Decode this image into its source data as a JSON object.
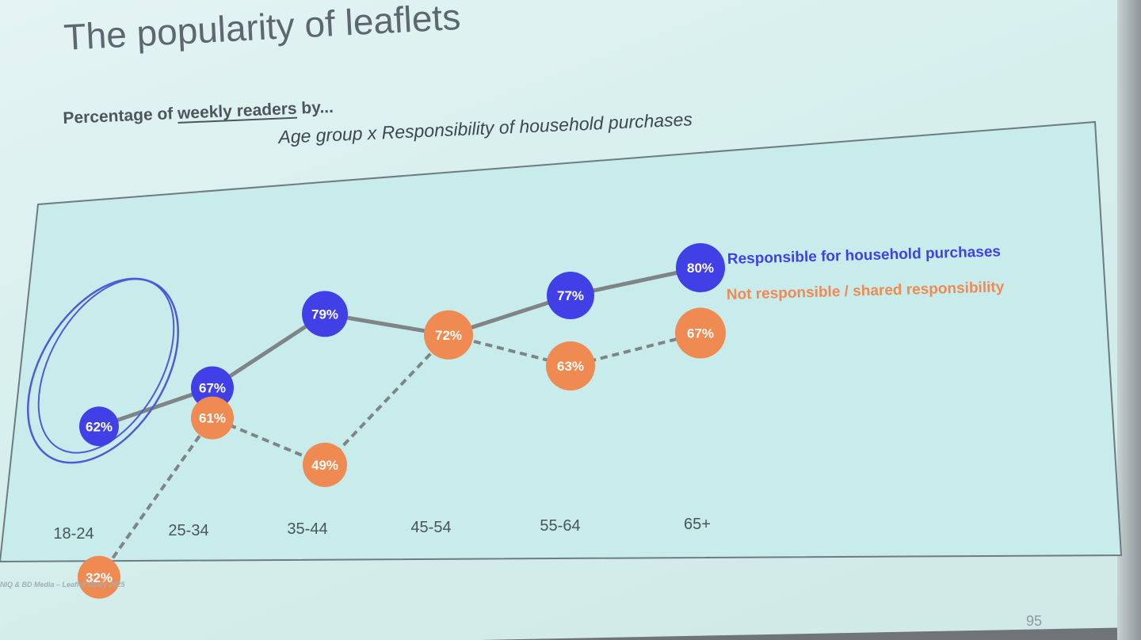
{
  "slide": {
    "title": "The popularity of leaflets",
    "subtitle_prefix": "Percentage of ",
    "subtitle_underlined": "weekly readers",
    "subtitle_suffix": " by...",
    "source": "NIQ & BD Media – Leaflet Study 2025",
    "page_number": "95"
  },
  "colors": {
    "responsible": "#4040e6",
    "not_responsible": "#ee8a52",
    "line": "#7f8486",
    "annotation": "#4f5bd5"
  },
  "chart_data": {
    "type": "line",
    "title": "Age group x Responsibility of household purchases",
    "categories": [
      "18-24",
      "25-34",
      "35-44",
      "45-54",
      "55-64",
      "65+"
    ],
    "ylim": [
      20,
      90
    ],
    "grid": false,
    "legend": "right-end labels",
    "series": [
      {
        "name": "Responsible for household purchases",
        "values": [
          62,
          67,
          79,
          72,
          77,
          80
        ],
        "labels": [
          "62%",
          "67%",
          "79%",
          "72%",
          "77%",
          "80%"
        ],
        "line_style": "solid"
      },
      {
        "name": "Not responsible / shared responsibility",
        "values": [
          32,
          61,
          49,
          72,
          63,
          67
        ],
        "labels": [
          "32%",
          "61%",
          "49%",
          "72%",
          "63%",
          "67%"
        ],
        "line_style": "dashed"
      }
    ],
    "annotation": "hand-drawn circle around 18-24"
  }
}
